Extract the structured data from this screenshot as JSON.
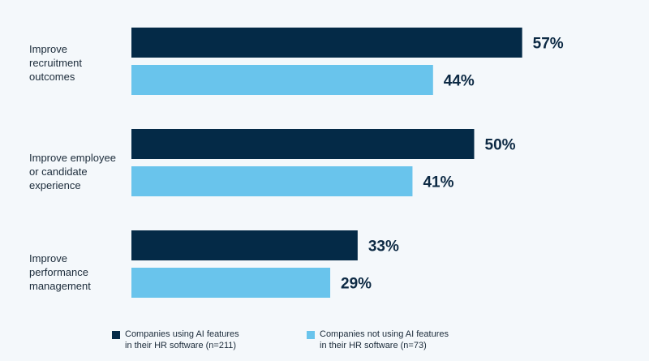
{
  "chart_data": {
    "type": "bar",
    "orientation": "horizontal",
    "categories": [
      "Improve recruitment outcomes",
      "Improve employee or candidate experience",
      "Improve performance management"
    ],
    "category_lines": [
      [
        "Improve",
        "recruitment",
        "outcomes"
      ],
      [
        "Improve employee",
        "or candidate",
        "experience"
      ],
      [
        "Improve",
        "performance",
        "management"
      ]
    ],
    "series": [
      {
        "name": "Companies using AI features in their HR software (n=211)",
        "values": [
          57,
          50,
          33
        ],
        "color": "#042a47"
      },
      {
        "name": "Companies not using AI features in their HR software (n=73)",
        "values": [
          44,
          41,
          29
        ],
        "color": "#69c4ec"
      }
    ],
    "value_labels": [
      [
        "57%",
        "50%",
        "33%"
      ],
      [
        "44%",
        "41%",
        "29%"
      ]
    ],
    "legend_lines": [
      [
        "Companies using AI features",
        "in their HR software (n=211)"
      ],
      [
        "Companies not using AI features",
        "in their HR software (n=73)"
      ]
    ],
    "xlim": [
      0,
      70
    ],
    "grid": false,
    "legend_position": "bottom"
  }
}
